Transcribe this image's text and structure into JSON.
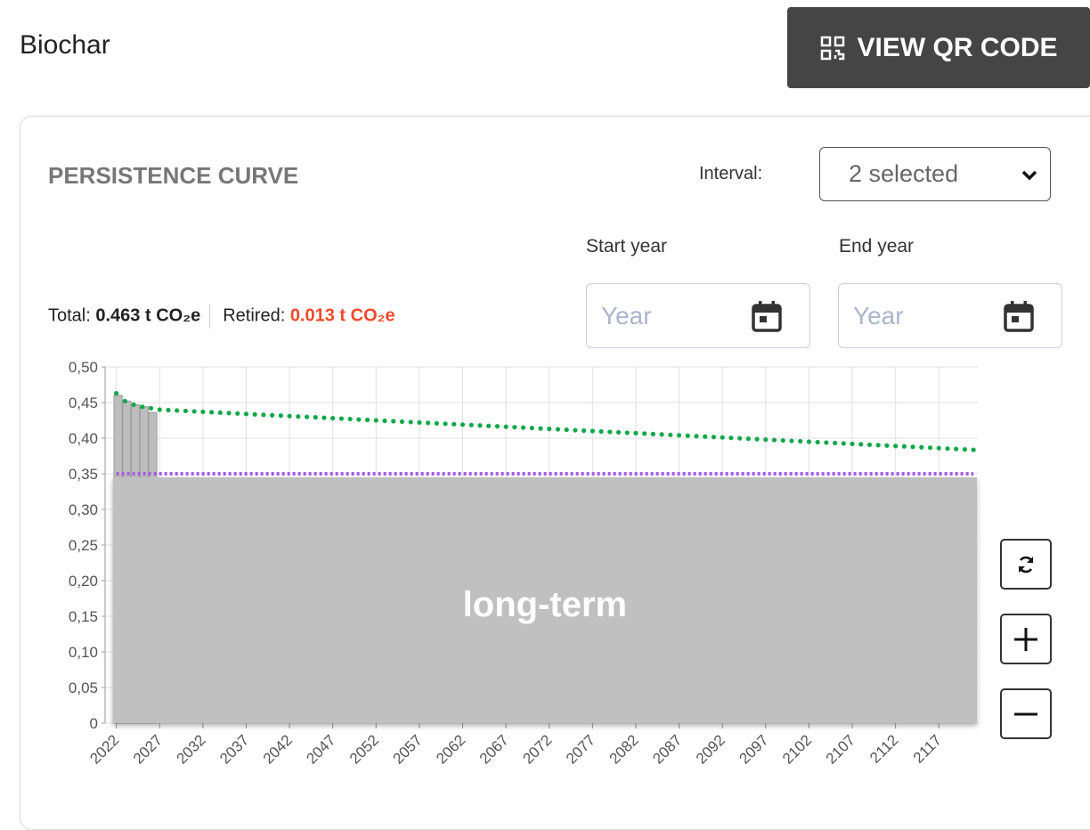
{
  "header": {
    "title": "Biochar",
    "button": "VIEW QR CODE"
  },
  "card": {
    "title": "PERSISTENCE CURVE",
    "interval_label": "Interval:",
    "interval_value": "2 selected",
    "start_label": "Start year",
    "end_label": "End year",
    "start_placeholder": "Year",
    "end_placeholder": "Year",
    "total_label": "Total:",
    "total_value": "0.463 t CO₂e",
    "retired_label": "Retired:",
    "retired_value": "0.013 t CO₂e"
  },
  "chart_data": {
    "type": "line",
    "x": [
      2022,
      2023,
      2024,
      2025,
      2026,
      2027,
      2028,
      2029,
      2030,
      2031,
      2032,
      2033,
      2034,
      2035,
      2036,
      2037,
      2038,
      2039,
      2040,
      2041,
      2042,
      2043,
      2044,
      2045,
      2046,
      2047,
      2048,
      2049,
      2050,
      2051,
      2052,
      2053,
      2054,
      2055,
      2056,
      2057,
      2058,
      2059,
      2060,
      2061,
      2062,
      2063,
      2064,
      2065,
      2066,
      2067,
      2068,
      2069,
      2070,
      2071,
      2072,
      2073,
      2074,
      2075,
      2076,
      2077,
      2078,
      2079,
      2080,
      2081,
      2082,
      2083,
      2084,
      2085,
      2086,
      2087,
      2088,
      2089,
      2090,
      2091,
      2092,
      2093,
      2094,
      2095,
      2096,
      2097,
      2098,
      2099,
      2100,
      2101,
      2102,
      2103,
      2104,
      2105,
      2106,
      2107,
      2108,
      2109,
      2110,
      2111,
      2112,
      2113,
      2114,
      2115,
      2116,
      2117,
      2118,
      2119,
      2120,
      2121
    ],
    "series": [
      {
        "color": "#12a84a",
        "values": [
          0.463,
          0.452,
          0.447,
          0.444,
          0.442,
          0.44,
          0.4394,
          0.4388,
          0.4382,
          0.4376,
          0.437,
          0.4364,
          0.4358,
          0.4352,
          0.4346,
          0.434,
          0.4334,
          0.4328,
          0.4322,
          0.4316,
          0.431,
          0.4304,
          0.4298,
          0.4292,
          0.4286,
          0.428,
          0.4274,
          0.4268,
          0.4262,
          0.4256,
          0.425,
          0.4244,
          0.4238,
          0.4232,
          0.4226,
          0.422,
          0.4214,
          0.4208,
          0.4202,
          0.4196,
          0.419,
          0.4184,
          0.4178,
          0.4172,
          0.4166,
          0.416,
          0.4154,
          0.4148,
          0.4142,
          0.4136,
          0.413,
          0.4124,
          0.4118,
          0.4112,
          0.4106,
          0.41,
          0.4094,
          0.4088,
          0.4082,
          0.4076,
          0.407,
          0.4064,
          0.4058,
          0.4052,
          0.4046,
          0.404,
          0.4034,
          0.4028,
          0.4022,
          0.4016,
          0.401,
          0.4004,
          0.3998,
          0.3992,
          0.3986,
          0.398,
          0.3974,
          0.3968,
          0.3962,
          0.3956,
          0.395,
          0.3944,
          0.3938,
          0.3932,
          0.3926,
          0.392,
          0.3914,
          0.3908,
          0.3902,
          0.3896,
          0.389,
          0.3884,
          0.3878,
          0.3872,
          0.3866,
          0.386,
          0.3854,
          0.3848,
          0.3842,
          0.3836
        ]
      }
    ],
    "bars": {
      "color": "#bdbdbd",
      "x": [
        2022,
        2023,
        2024,
        2025,
        2026
      ],
      "values": [
        0.46,
        0.452,
        0.447,
        0.444,
        0.436
      ]
    },
    "long_term": {
      "label": "long-term",
      "value": 0.345,
      "color": "#c0c0c0"
    },
    "baseline": {
      "value": 0.35,
      "color": "#a45ee5"
    },
    "xlim": [
      2020.7,
      2121.5
    ],
    "xticks": [
      2022,
      2027,
      2032,
      2037,
      2042,
      2047,
      2052,
      2057,
      2062,
      2067,
      2072,
      2077,
      2082,
      2087,
      2092,
      2097,
      2102,
      2107,
      2112,
      2117
    ],
    "ylim": [
      0,
      0.5
    ],
    "yticks": [
      0,
      {
        "value": 0.05,
        "label": "0,05"
      },
      {
        "value": 0.1,
        "label": "0,10"
      },
      {
        "value": 0.15,
        "label": "0,15"
      },
      {
        "value": 0.2,
        "label": "0,20"
      },
      {
        "value": 0.25,
        "label": "0,25"
      },
      {
        "value": 0.3,
        "label": "0,30"
      },
      {
        "value": 0.35,
        "label": "0,35"
      },
      {
        "value": 0.4,
        "label": "0,40"
      },
      {
        "value": 0.45,
        "label": "0,45"
      },
      {
        "value": 0.5,
        "label": "0,50"
      }
    ],
    "grid": true
  }
}
